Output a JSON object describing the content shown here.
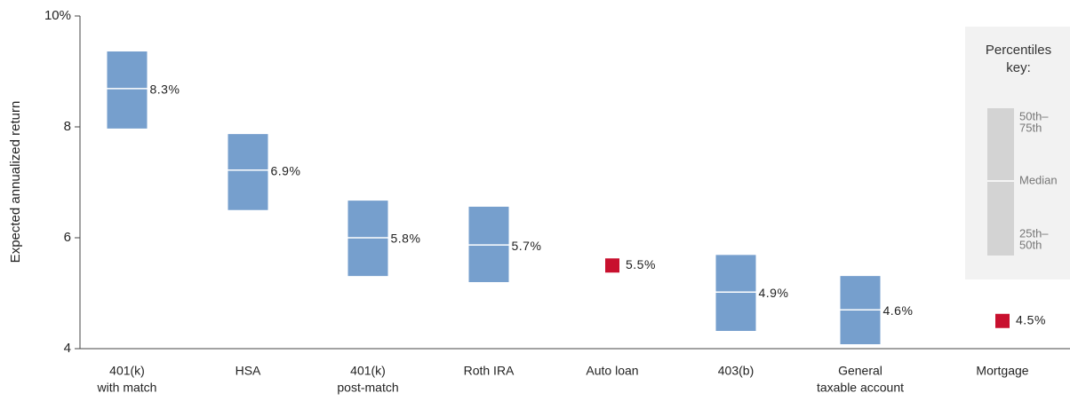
{
  "chart_data": {
    "type": "box",
    "y_label": "Expected annualized return",
    "categories": [
      [
        "401(k)",
        "with match"
      ],
      [
        "HSA"
      ],
      [
        "401(k)",
        "post-match"
      ],
      [
        "Roth IRA"
      ],
      [
        "Auto loan"
      ],
      [
        "403(b)"
      ],
      [
        "General",
        "taxable account"
      ],
      [
        "Mortgage"
      ]
    ],
    "p75": [
      9.36,
      7.87,
      6.67,
      6.56,
      null,
      5.69,
      5.31,
      null
    ],
    "median": [
      8.69,
      7.22,
      6.0,
      5.87,
      null,
      5.02,
      4.7,
      null
    ],
    "p25": [
      7.97,
      6.5,
      5.31,
      5.2,
      null,
      4.32,
      4.08,
      null
    ],
    "values": [
      8.3,
      6.9,
      5.8,
      5.7,
      5.5,
      4.9,
      4.6,
      4.5
    ],
    "value_labels": [
      "8.3%",
      "6.9%",
      "5.8%",
      "5.7%",
      "5.5%",
      "4.9%",
      "4.6%",
      "4.5%"
    ],
    "box_color": "#769fcd",
    "point_color": "#c8102e",
    "ylim": [
      4,
      10
    ],
    "yticks": [
      4,
      6,
      8,
      {
        "value": 10,
        "label": "10%"
      }
    ],
    "key": {
      "title": [
        "Percentiles",
        "key:"
      ],
      "upper": [
        "50th–",
        "75th"
      ],
      "median": "Median",
      "lower": [
        "25th–",
        "50th"
      ]
    }
  }
}
